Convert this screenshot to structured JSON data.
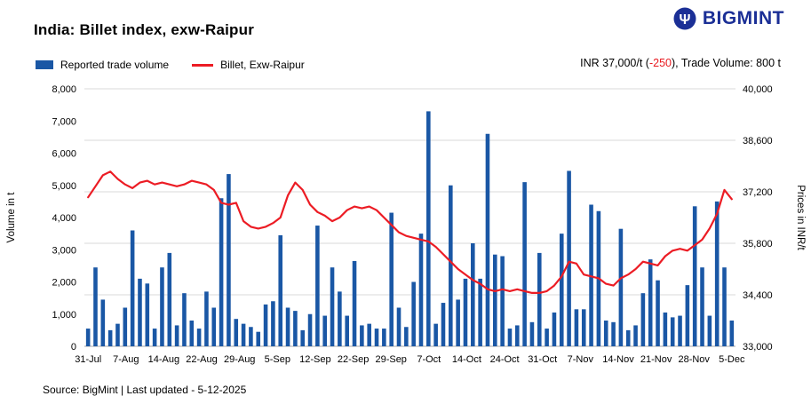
{
  "title": "India: Billet index, exw-Raipur",
  "brand": {
    "name": "BIGMINT"
  },
  "legend": [
    {
      "label": "Reported trade volume",
      "type": "bar"
    },
    {
      "label": "Billet, Exw-Raipur",
      "type": "line"
    }
  ],
  "stat": {
    "prefix": "INR 37,000/t (",
    "change": "-250",
    "suffix": "), Trade Volume: 800 t"
  },
  "source": "Source: BigMint | Last updated - 5-12-2025",
  "colors": {
    "brand": "#1b2f96",
    "bar": "#1a57a5",
    "line": "#ec1c24",
    "grid": "#d9d9d9",
    "axis": "#a6a6a6",
    "negative": "#e8191f"
  },
  "chart_data": {
    "type": "bar",
    "title": "India: Billet index, exw-Raipur",
    "y_left_title": "Volume in t",
    "y_right_title": "Prices in INR/t",
    "y_left_min": 0,
    "y_left_max": 8000,
    "y_right_min": 33000,
    "y_right_max": 40000,
    "y_left_ticks": [
      0,
      1000,
      2000,
      3000,
      4000,
      5000,
      6000,
      7000,
      8000
    ],
    "y_left_tick_labels": [
      "0",
      "1,000",
      "2,000",
      "3,000",
      "4,000",
      "5,000",
      "6,000",
      "7,000",
      "8,000"
    ],
    "y_right_ticks": [
      33000,
      34400,
      35800,
      37200,
      38600,
      40000
    ],
    "y_right_tick_labels": [
      "33,000",
      "34,400",
      "35,800",
      "37,200",
      "38,600",
      "40,000"
    ],
    "x_ticks": [
      "31-Jul",
      "7-Aug",
      "14-Aug",
      "22-Aug",
      "29-Aug",
      "5-Sep",
      "12-Sep",
      "22-Sep",
      "29-Sep",
      "7-Oct",
      "14-Oct",
      "24-Oct",
      "31-Oct",
      "7-Nov",
      "14-Nov",
      "21-Nov",
      "28-Nov",
      "5-Dec"
    ],
    "grid": "horizontal",
    "legend_position": "top-left",
    "series": [
      {
        "name": "Reported trade volume",
        "type": "bar",
        "axis": "left",
        "values": [
          550,
          2450,
          1450,
          500,
          700,
          1200,
          3600,
          2100,
          1950,
          550,
          2450,
          2900,
          650,
          1650,
          800,
          550,
          1700,
          1200,
          4600,
          5350,
          850,
          700,
          600,
          450,
          1300,
          1400,
          3450,
          1200,
          1100,
          500,
          1000,
          3750,
          950,
          2450,
          1700,
          950,
          2650,
          650,
          700,
          550,
          550,
          4150,
          1200,
          600,
          2000,
          3500,
          7300,
          700,
          1350,
          5000,
          1450,
          2100,
          3200,
          2100,
          6600,
          2850,
          2800,
          550,
          650,
          5100,
          750,
          2900,
          550,
          1050,
          3500,
          5450,
          1150,
          1150,
          4400,
          4200,
          800,
          750,
          3650,
          500,
          650,
          1650,
          2700,
          2050,
          1050,
          900,
          950,
          1900,
          4350,
          2450,
          950,
          4500,
          2450,
          800
        ]
      },
      {
        "name": "Billet, Exw-Raipur",
        "type": "line",
        "axis": "right",
        "values": [
          37050,
          37350,
          37650,
          37750,
          37550,
          37400,
          37300,
          37450,
          37500,
          37400,
          37450,
          37400,
          37350,
          37400,
          37500,
          37450,
          37400,
          37250,
          36900,
          36850,
          36900,
          36400,
          36250,
          36200,
          36250,
          36350,
          36500,
          37100,
          37450,
          37250,
          36850,
          36650,
          36550,
          36400,
          36500,
          36700,
          36800,
          36750,
          36800,
          36700,
          36500,
          36300,
          36100,
          36000,
          35950,
          35900,
          35850,
          35700,
          35500,
          35300,
          35100,
          34950,
          34800,
          34700,
          34550,
          34500,
          34550,
          34500,
          34550,
          34500,
          34450,
          34450,
          34500,
          34650,
          34900,
          35300,
          35250,
          34950,
          34900,
          34850,
          34700,
          34650,
          34850,
          34950,
          35100,
          35300,
          35250,
          35200,
          35450,
          35600,
          35650,
          35600,
          35750,
          35900,
          36200,
          36600,
          37250,
          37000
        ]
      }
    ]
  }
}
